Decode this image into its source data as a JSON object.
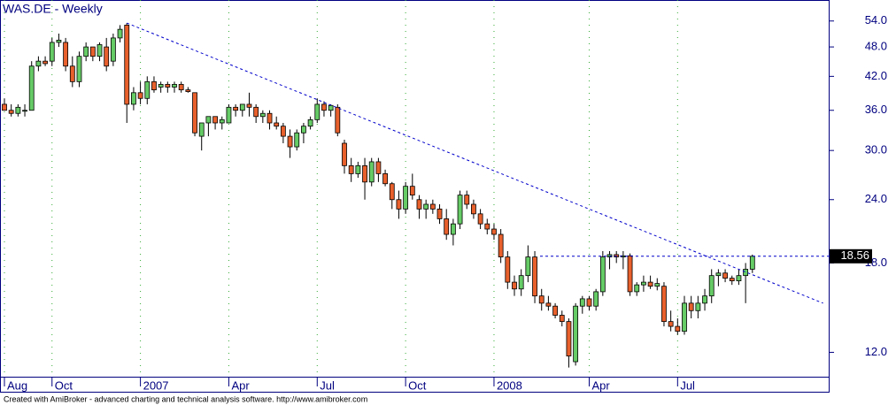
{
  "chart_data": {
    "type": "candlestick",
    "title": "WAS.DE - Weekly",
    "footer": "Created with AmiBroker - advanced charting and technical analysis software. http://www.amibroker.com",
    "categories": [
      "Aug",
      null,
      null,
      null,
      null,
      null,
      null,
      "Oct",
      null,
      null,
      null,
      null,
      null,
      null,
      null,
      null,
      null,
      null,
      null,
      null,
      "2007",
      null,
      null,
      null,
      null,
      null,
      null,
      null,
      null,
      null,
      null,
      null,
      null,
      "Apr",
      null,
      null,
      null,
      null,
      null,
      null,
      null,
      null,
      null,
      null,
      null,
      null,
      "Jul",
      null,
      null,
      null,
      null,
      null,
      null,
      null,
      null,
      null,
      null,
      null,
      null,
      "Oct",
      null,
      null,
      null,
      null,
      null,
      null,
      null,
      null,
      null,
      null,
      null,
      null,
      "2008",
      null,
      null,
      null,
      null,
      null,
      null,
      null,
      null,
      null,
      null,
      null,
      null,
      null,
      "Apr",
      null,
      null,
      null,
      null,
      null,
      null,
      null,
      null,
      null,
      null,
      null,
      null,
      "Jul",
      null,
      null,
      null,
      null,
      null,
      null,
      null,
      null,
      null,
      null,
      null
    ],
    "open": [
      37,
      36,
      35.5,
      36,
      36,
      44,
      45,
      45,
      49,
      49,
      44,
      41,
      46,
      48,
      46,
      48,
      45,
      50,
      53,
      37,
      39,
      38,
      41,
      40,
      40.5,
      40,
      40.5,
      39.5,
      39,
      32,
      34,
      35,
      34,
      34,
      36.5,
      36,
      37,
      36.5,
      35,
      35.5,
      34,
      33.5,
      32,
      30.5,
      32.5,
      33.5,
      34.5,
      37,
      36,
      36.5,
      31,
      28,
      27,
      28,
      26,
      28.5,
      27,
      25.8,
      24,
      23,
      25.5,
      24,
      23,
      23.5,
      23,
      22,
      20.5,
      21.5,
      24.5,
      23.5,
      22.5,
      21.5,
      21,
      20.5,
      18.5,
      16.5,
      16,
      17,
      18.5,
      15.5,
      15,
      14.8,
      14.2,
      13.8,
      11.5,
      14.8,
      15.3,
      14.8,
      15.8,
      18.5,
      18.7,
      18.5,
      18.6,
      15.8,
      16.3,
      16.5,
      16.2,
      16.2,
      13.8,
      13.5,
      13.2,
      15,
      14.5,
      15,
      15.5,
      17,
      17.2,
      16.8,
      16.6,
      17,
      17.5
    ],
    "high": [
      38,
      37,
      37,
      37,
      45,
      46,
      46,
      50,
      51,
      50,
      46,
      47,
      49,
      48,
      49,
      50,
      51,
      53,
      53.5,
      40,
      41,
      42,
      42,
      41,
      41,
      41,
      41,
      40,
      39,
      34,
      35,
      35,
      35,
      37,
      37,
      37,
      39,
      37,
      36,
      36,
      35,
      34,
      33,
      33,
      34,
      35,
      38,
      37.5,
      37,
      37,
      31.5,
      29,
      28.5,
      29,
      29,
      29,
      27.5,
      26,
      25,
      26,
      27,
      24.5,
      24,
      24,
      23.5,
      23,
      22,
      25,
      25,
      24,
      23,
      22,
      21.5,
      21,
      19,
      17,
      17.5,
      19.5,
      19,
      16,
      15.5,
      15,
      14.5,
      14,
      15,
      15.5,
      15.5,
      16,
      19,
      19,
      19,
      19,
      18.8,
      16.5,
      17,
      17,
      16.8,
      16.5,
      14.5,
      14,
      15.5,
      15.5,
      15.5,
      16,
      17.5,
      17.5,
      17.5,
      17,
      17.5,
      18,
      18.7
    ],
    "low": [
      36,
      35,
      35,
      35,
      36,
      43,
      44,
      44,
      48,
      43,
      40,
      40,
      45,
      45,
      45,
      43,
      44,
      49,
      34,
      36,
      37,
      37,
      39,
      39,
      39,
      39,
      39,
      39,
      32,
      30,
      32,
      33,
      33,
      34,
      35,
      35,
      35,
      34,
      34,
      33,
      33,
      31,
      29,
      30,
      31,
      33,
      34,
      35,
      35,
      32,
      27,
      26,
      26.5,
      24,
      25.5,
      26,
      25.5,
      23,
      22,
      22.5,
      24,
      22,
      22,
      22.5,
      21.5,
      20,
      19.5,
      21,
      23,
      22,
      21,
      20.5,
      20,
      18,
      16,
      15.5,
      15.5,
      16.5,
      15,
      14.5,
      14.5,
      14,
      13.5,
      11.2,
      11.3,
      14.3,
      14.5,
      14.5,
      15.5,
      17.5,
      18,
      17.5,
      15.5,
      15.5,
      15.8,
      16,
      15.9,
      13.5,
      13.2,
      13,
      13,
      14,
      14,
      14.5,
      15,
      16.2,
      16.5,
      16.3,
      16.3,
      15,
      17.2
    ],
    "close": [
      36,
      35.5,
      36.5,
      36,
      44,
      45,
      44.5,
      49,
      49.5,
      44,
      41,
      46,
      48,
      46,
      48.5,
      44,
      50,
      52,
      37,
      39,
      38,
      41,
      39.5,
      40.5,
      40,
      40.5,
      39.5,
      39.2,
      32.5,
      34,
      35,
      34,
      34.5,
      36.5,
      36,
      37,
      36.5,
      35,
      35.5,
      34,
      33.5,
      32,
      30.5,
      32.5,
      33.5,
      34.5,
      37,
      36,
      36.8,
      32.5,
      28,
      27,
      28,
      26,
      28.5,
      27,
      25.8,
      24,
      23,
      25.5,
      24.5,
      23,
      23.5,
      23,
      22,
      20.5,
      21.5,
      24.5,
      23.5,
      22.5,
      21.5,
      21,
      20.5,
      18.5,
      16.5,
      16,
      17,
      18.5,
      15.5,
      15,
      14.8,
      14.2,
      13.8,
      11.8,
      14.8,
      15.3,
      14.8,
      15.8,
      18.5,
      18.7,
      18.5,
      18.6,
      15.8,
      16.3,
      16.5,
      16.2,
      16.4,
      13.8,
      13.5,
      13.2,
      15,
      14.5,
      15,
      15.5,
      17,
      17.2,
      16.8,
      16.6,
      17,
      17.5,
      18.56
    ],
    "up_color": "#66cc66",
    "down_color": "#e8602c",
    "log_scale": true,
    "grid": true,
    "ylim": [
      10.7,
      59.4
    ],
    "yticks": [
      {
        "value": 54,
        "label": "54.0"
      },
      {
        "value": 48,
        "label": "48.0"
      },
      {
        "value": 42,
        "label": "42.0"
      },
      {
        "value": 36,
        "label": "36.0"
      },
      {
        "value": 30,
        "label": "30.0"
      },
      {
        "value": 24,
        "label": "24.0"
      },
      {
        "value": 18,
        "label": "18.0"
      },
      {
        "value": 12,
        "label": "12.0"
      }
    ],
    "trendline": {
      "x": [
        18,
        120.4
      ],
      "y": [
        53.5,
        15.0
      ]
    },
    "last_price": 18.56
  }
}
